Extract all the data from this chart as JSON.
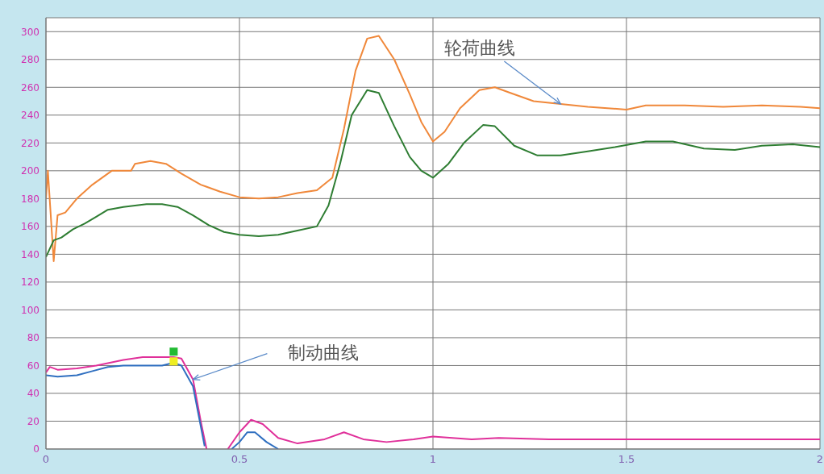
{
  "chart_data": {
    "type": "line",
    "xlim": [
      0,
      2
    ],
    "xticks": [
      0,
      0.5,
      1,
      1.5,
      2
    ],
    "ylim": [
      0,
      310
    ],
    "yticks": [
      0,
      20,
      40,
      60,
      80,
      100,
      120,
      140,
      160,
      180,
      200,
      220,
      240,
      260,
      280,
      300
    ],
    "grid": true,
    "legend": false,
    "marker": "none",
    "line_style": "solid",
    "annotations": [
      {
        "text": "轮荷曲线",
        "x": 1.33,
        "y": 248
      },
      {
        "text": "制动曲线",
        "x": 0.38,
        "y": 50
      }
    ],
    "series": [
      {
        "color": "#f0883a",
        "x": [
          0,
          0.005,
          0.02,
          0.03,
          0.05,
          0.08,
          0.12,
          0.17,
          0.22,
          0.23,
          0.27,
          0.31,
          0.35,
          0.4,
          0.45,
          0.5,
          0.55,
          0.6,
          0.65,
          0.7,
          0.74,
          0.77,
          0.8,
          0.83,
          0.86,
          0.9,
          0.94,
          0.97,
          1.0,
          1.03,
          1.07,
          1.12,
          1.16,
          1.2,
          1.26,
          1.33,
          1.4,
          1.5,
          1.55,
          1.65,
          1.75,
          1.85,
          1.95,
          2
        ],
        "values": [
          180,
          200,
          135,
          168,
          170,
          180,
          190,
          200,
          200,
          205,
          207,
          205,
          198,
          190,
          185,
          181,
          180,
          181,
          184,
          186,
          195,
          230,
          272,
          295,
          297,
          280,
          255,
          235,
          221,
          228,
          245,
          258,
          260,
          256,
          250,
          248,
          246,
          244,
          247,
          247,
          246,
          247,
          246,
          245
        ]
      },
      {
        "color": "#2e7d32",
        "x": [
          0,
          0.02,
          0.04,
          0.07,
          0.1,
          0.13,
          0.16,
          0.2,
          0.26,
          0.3,
          0.34,
          0.38,
          0.42,
          0.46,
          0.5,
          0.55,
          0.6,
          0.65,
          0.7,
          0.73,
          0.76,
          0.79,
          0.83,
          0.86,
          0.9,
          0.94,
          0.97,
          1.0,
          1.04,
          1.08,
          1.13,
          1.16,
          1.21,
          1.27,
          1.33,
          1.4,
          1.47,
          1.55,
          1.62,
          1.7,
          1.78,
          1.85,
          1.93,
          2
        ],
        "values": [
          138,
          150,
          152,
          158,
          162,
          167,
          172,
          174,
          176,
          176,
          174,
          168,
          161,
          156,
          154,
          153,
          154,
          157,
          160,
          175,
          205,
          240,
          258,
          256,
          232,
          210,
          200,
          195,
          205,
          220,
          233,
          232,
          218,
          211,
          211,
          214,
          217,
          221,
          221,
          216,
          215,
          218,
          219,
          217
        ]
      },
      {
        "color": "#e0309a",
        "x": [
          0,
          0.01,
          0.03,
          0.08,
          0.13,
          0.2,
          0.25,
          0.33,
          0.35,
          0.38,
          0.4,
          0.415,
          0.44,
          0.47,
          0.5,
          0.53,
          0.56,
          0.6,
          0.65,
          0.72,
          0.77,
          0.82,
          0.88,
          0.95,
          1.0,
          1.05,
          1.1,
          1.17,
          1.3,
          1.5,
          2
        ],
        "values": [
          55,
          59,
          57,
          58,
          60,
          64,
          66,
          66,
          65,
          50,
          20,
          0,
          null,
          0,
          12,
          21,
          18,
          8,
          4,
          7,
          12,
          7,
          5,
          7,
          9,
          8,
          7,
          8,
          7,
          7,
          7
        ]
      },
      {
        "color": "#2f6fc0",
        "x": [
          0,
          0.03,
          0.08,
          0.12,
          0.16,
          0.2,
          0.3,
          0.33,
          0.35,
          0.38,
          0.41,
          0.44,
          0.48,
          0.5,
          0.52,
          0.54,
          0.57,
          0.6
        ],
        "values": [
          53,
          52,
          53,
          56,
          59,
          60,
          60,
          62,
          60,
          45,
          2,
          null,
          0,
          5,
          12,
          12,
          5,
          0
        ]
      },
      {
        "type": "scatter",
        "marker": "square",
        "color": "#22bb33",
        "x": [
          0.33
        ],
        "values": [
          70
        ]
      },
      {
        "type": "scatter",
        "marker": "square",
        "color": "#eeee22",
        "x": [
          0.33
        ],
        "values": [
          63
        ]
      }
    ]
  }
}
